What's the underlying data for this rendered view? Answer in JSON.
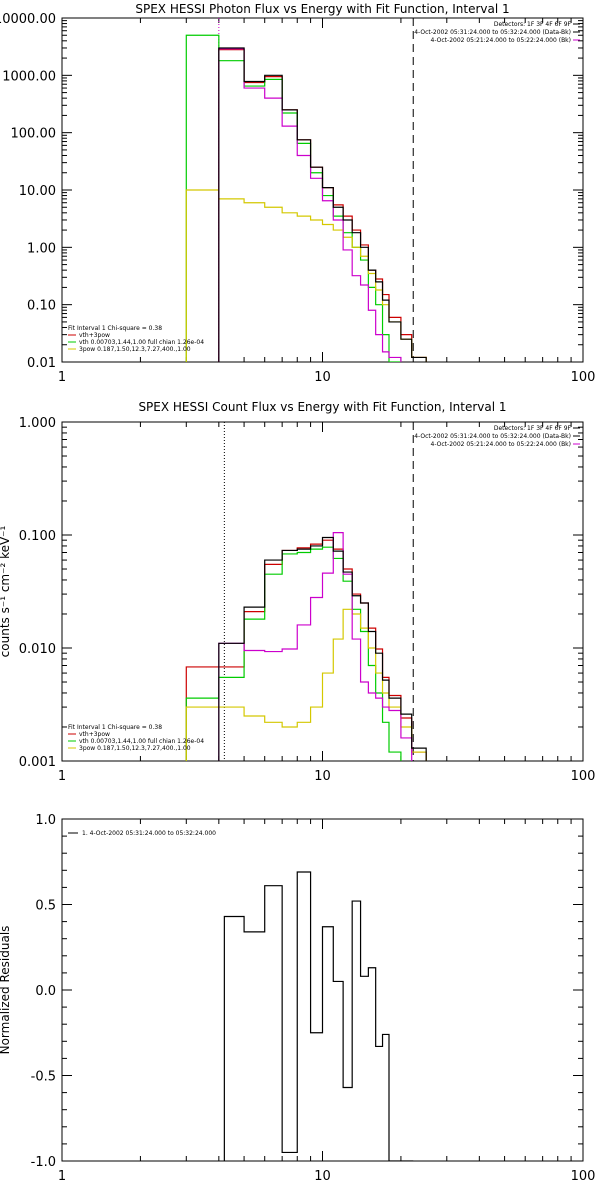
{
  "chart_data": [
    {
      "type": "line",
      "title": "SPEX HESSI Photon Flux vs Energy with Fit Function, Interval 1",
      "xlabel": "",
      "ylabel": "",
      "xscale": "log",
      "yscale": "log",
      "xlim": [
        1,
        100
      ],
      "ylim": [
        0.01,
        10000
      ],
      "xticks": [
        {
          "v": 1,
          "label": "1"
        },
        {
          "v": 10,
          "label": "10"
        },
        {
          "v": 100,
          "label": "100"
        }
      ],
      "yticks": [
        {
          "v": 0.01,
          "label": "0.01"
        },
        {
          "v": 0.1,
          "label": "0.10"
        },
        {
          "v": 1,
          "label": "1.00"
        },
        {
          "v": 10,
          "label": "10.00"
        },
        {
          "v": 100,
          "label": "100.00"
        },
        {
          "v": 1000,
          "label": "1000.00"
        },
        {
          "v": 10000,
          "label": "10000.00"
        }
      ],
      "header": [
        "Detectors: 1F 3F 4F 6F 9F",
        "4-Oct-2002 05:31:24.000 to 05:32:24.000 (Data-Bk)",
        "4-Oct-2002 05:21:24.000 to 05:22:24.000 (Bk)"
      ],
      "legend_notes": [
        "Fit Interval 1    Chi-square = 0.38"
      ],
      "bin_edges": [
        3,
        4,
        5,
        6,
        7,
        8,
        9,
        10,
        11,
        12,
        13,
        14,
        15,
        16,
        17,
        18,
        20,
        22,
        25
      ],
      "series": [
        {
          "name": "vth+3pow",
          "color": "#cc0000",
          "values": [
            null,
            2800,
            750,
            950,
            250,
            75,
            25,
            11,
            5.5,
            3.5,
            2.0,
            1.1,
            0.4,
            0.28,
            0.15,
            0.06,
            0.03,
            0.012
          ]
        },
        {
          "name": "vth 0.00703,1.44,1.00  full chian 1.26e-04",
          "color": "#00cc00",
          "values": [
            5000,
            1800,
            650,
            850,
            220,
            65,
            20,
            8,
            3.5,
            1.8,
            1.0,
            0.6,
            0.2,
            0.1,
            0.03,
            0.01,
            null,
            null
          ]
        },
        {
          "name": "3pow 0.187,1.50,12.3,7.27,400.,1.00",
          "color": "#d4c800",
          "values": [
            10,
            7,
            6,
            5,
            4,
            3.5,
            3.0,
            2.5,
            2.0,
            1.5,
            1.0,
            0.7,
            0.35,
            0.18,
            0.1,
            0.05,
            0.025,
            0.012
          ]
        },
        {
          "name": "",
          "color": "#cc00cc",
          "values": [
            null,
            2900,
            600,
            400,
            130,
            40,
            16,
            6.5,
            3.0,
            0.9,
            0.32,
            0.22,
            0.08,
            0.03,
            0.015,
            0.012,
            null,
            null
          ]
        },
        {
          "name": "",
          "color": "#000000",
          "values": [
            null,
            3000,
            780,
            1000,
            250,
            75,
            25,
            11,
            5.0,
            3.0,
            1.8,
            1.0,
            0.4,
            0.25,
            0.12,
            0.05,
            0.025,
            0.012
          ]
        }
      ],
      "vlines": [
        {
          "x": 4,
          "color": "#cc00cc",
          "style": "dotted"
        },
        {
          "x": 22.3,
          "color": "#000000",
          "style": "dashed"
        }
      ]
    },
    {
      "type": "line",
      "title": "SPEX HESSI Count Flux vs Energy with Fit Function, Interval 1",
      "xlabel": "",
      "ylabel": "counts s⁻¹ cm⁻² keV⁻¹",
      "xscale": "log",
      "yscale": "log",
      "xlim": [
        1,
        100
      ],
      "ylim": [
        0.001,
        1
      ],
      "xticks": [
        {
          "v": 1,
          "label": "1"
        },
        {
          "v": 10,
          "label": "10"
        },
        {
          "v": 100,
          "label": "100"
        }
      ],
      "yticks": [
        {
          "v": 0.001,
          "label": "0.001"
        },
        {
          "v": 0.01,
          "label": "0.010"
        },
        {
          "v": 0.1,
          "label": "0.100"
        },
        {
          "v": 1,
          "label": "1.000"
        }
      ],
      "header": [
        "Detectors: 1F 3F 4F 6F 9F",
        "4-Oct-2002 05:31:24.000 to 05:32:24.000 (Data-Bk)",
        "4-Oct-2002 05:21:24.000 to 05:22:24.000 (Bk)"
      ],
      "legend_notes": [
        "Fit Interval 1    Chi-square = 0.38"
      ],
      "bin_edges": [
        3,
        4,
        5,
        6,
        7,
        8,
        9,
        10,
        11,
        12,
        13,
        14,
        15,
        16,
        17,
        18,
        20,
        22,
        25
      ],
      "series": [
        {
          "name": "vth+3pow",
          "color": "#cc0000",
          "values": [
            0.0068,
            0.0068,
            0.021,
            0.055,
            0.073,
            0.077,
            0.083,
            0.09,
            0.075,
            0.05,
            0.03,
            0.025,
            0.015,
            0.0098,
            0.0055,
            0.0038,
            0.0024,
            0.0012
          ]
        },
        {
          "name": "vth 0.00703,1.44,1.00  full chian 1.26e-04",
          "color": "#00cc00",
          "values": [
            0.0036,
            0.0055,
            0.018,
            0.045,
            0.068,
            0.07,
            0.075,
            0.078,
            0.062,
            0.039,
            0.022,
            0.014,
            0.007,
            0.004,
            0.0022,
            0.0012,
            null,
            null
          ]
        },
        {
          "name": "3pow 0.187,1.50,12.3,7.27,400.,1.00",
          "color": "#d4c800",
          "values": [
            0.003,
            0.003,
            0.0025,
            0.0022,
            0.002,
            0.0022,
            0.003,
            0.006,
            0.012,
            0.022,
            0.02,
            0.015,
            0.01,
            0.006,
            0.004,
            0.003,
            0.002,
            0.0012
          ]
        },
        {
          "name": "",
          "color": "#cc00cc",
          "values": [
            null,
            0.011,
            0.0095,
            0.0093,
            0.0098,
            0.016,
            0.028,
            0.046,
            0.105,
            0.045,
            0.012,
            0.005,
            0.004,
            0.0036,
            0.003,
            0.0028,
            0.0016,
            null
          ]
        },
        {
          "name": "",
          "color": "#000000",
          "values": [
            null,
            0.011,
            0.023,
            0.06,
            0.073,
            0.075,
            0.08,
            0.095,
            0.072,
            0.047,
            0.029,
            0.025,
            0.014,
            0.009,
            0.0052,
            0.0036,
            0.0026,
            0.0013
          ]
        }
      ],
      "vlines": [
        {
          "x": 4.2,
          "color": "#000000",
          "style": "dotted"
        },
        {
          "x": 22.3,
          "color": "#000000",
          "style": "dashed"
        }
      ]
    },
    {
      "type": "line",
      "title": "",
      "xlabel": "",
      "ylabel": "Normalized Residuals",
      "xscale": "log",
      "yscale": "linear",
      "xlim": [
        1,
        100
      ],
      "ylim": [
        -1,
        1
      ],
      "xticks": [
        {
          "v": 1,
          "label": "1"
        },
        {
          "v": 10,
          "label": "10"
        },
        {
          "v": 100,
          "label": "100"
        }
      ],
      "yticks": [
        {
          "v": -1,
          "label": "-1.0"
        },
        {
          "v": -0.5,
          "label": "-0.5"
        },
        {
          "v": 0,
          "label": "0.0"
        },
        {
          "v": 0.5,
          "label": "0.5"
        },
        {
          "v": 1,
          "label": "1.0"
        }
      ],
      "legend": [
        "1.  4-Oct-2002 05:31:24.000 to 05:32:24.000"
      ],
      "bin_edges": [
        4.2,
        5,
        6,
        7,
        8,
        9,
        10,
        11,
        12,
        13,
        14,
        15,
        16,
        17,
        18,
        20,
        22.3
      ],
      "series": [
        {
          "name": "1.  4-Oct-2002 05:31:24.000 to 05:32:24.000",
          "color": "#000000",
          "values": [
            0.43,
            0.34,
            0.61,
            -0.95,
            0.69,
            -0.25,
            0.37,
            0.05,
            -0.57,
            0.52,
            0.08,
            0.13,
            -0.33,
            -0.26,
            -1.0,
            -1.0
          ]
        }
      ]
    }
  ]
}
